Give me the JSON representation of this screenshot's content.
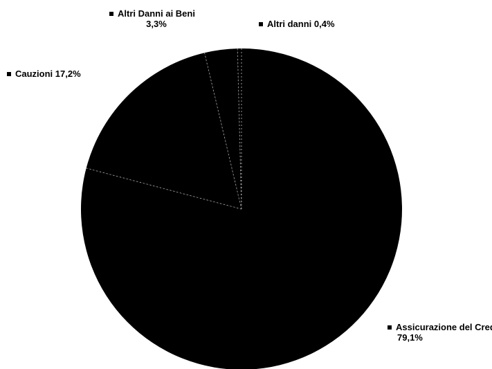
{
  "chart_data": {
    "type": "pie",
    "colors": {
      "slice": "#000000",
      "separator": "#9a9a9a",
      "background": "#ffffff"
    },
    "slices": [
      {
        "label": "Assicurazione del Credito",
        "value_text": "79,1%",
        "value": 79.1
      },
      {
        "label": "Cauzioni",
        "value_text": "17,2%",
        "value": 17.2
      },
      {
        "label": "Altri Danni ai Beni",
        "value_text": "3,3%",
        "value": 3.3
      },
      {
        "label": "Altri danni",
        "value_text": "0,4%",
        "value": 0.4
      }
    ],
    "legend_placement": "labels around the pie"
  }
}
